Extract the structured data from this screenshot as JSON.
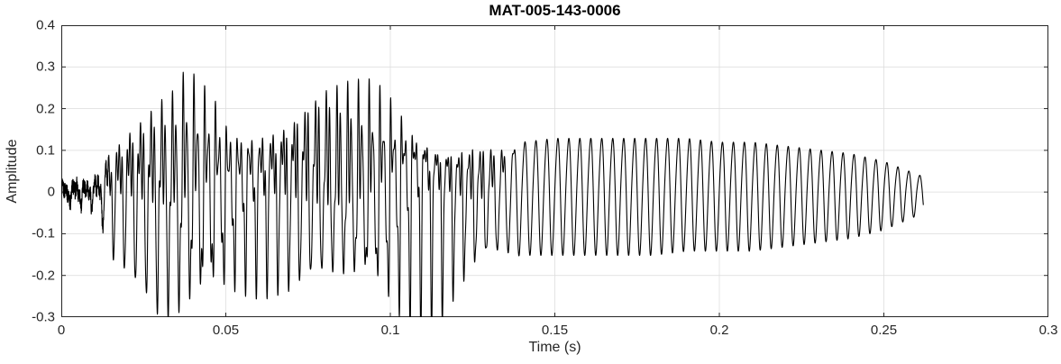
{
  "chart_data": {
    "type": "line",
    "title": "MAT-005-143-0006",
    "xlabel": "Time (s)",
    "ylabel": "Amplitude",
    "xlim": [
      0,
      0.3
    ],
    "ylim": [
      -0.3,
      0.4
    ],
    "xticks": [
      0,
      0.05,
      0.1,
      0.15,
      0.2,
      0.25,
      0.3
    ],
    "xtick_labels": [
      "0",
      "0.05",
      "0.1",
      "0.15",
      "0.2",
      "0.25",
      "0.3"
    ],
    "yticks": [
      -0.3,
      -0.2,
      -0.1,
      0,
      0.1,
      0.2,
      0.3,
      0.4
    ],
    "ytick_labels": [
      "-0.3",
      "-0.2",
      "-0.1",
      "0",
      "0.1",
      "0.2",
      "0.3",
      "0.4"
    ],
    "grid": true,
    "legend_position": "none",
    "line_color": "#000000",
    "axis_color": "#262626",
    "grid_color": "#dbdbdb",
    "background_color": "#ffffff",
    "signal": {
      "description": "speech-like waveform: peak-envelope (upper/lower) vs time, fundamental ~300 Hz, harmonically rich until ~0.127 s, near-sinusoidal decaying tail until ~0.262 s, low-level noise before onset at ~0.012 s",
      "f0_hz": 300,
      "complex_until": 0.127,
      "noise_until": 0.012,
      "noise_amp": 0.02,
      "end_time": 0.262,
      "envelope_t": [
        0.0,
        0.008,
        0.012,
        0.014,
        0.018,
        0.022,
        0.026,
        0.03,
        0.034,
        0.038,
        0.042,
        0.046,
        0.05,
        0.055,
        0.06,
        0.065,
        0.07,
        0.075,
        0.08,
        0.085,
        0.09,
        0.095,
        0.1,
        0.105,
        0.11,
        0.115,
        0.12,
        0.125,
        0.13,
        0.14,
        0.15,
        0.16,
        0.17,
        0.18,
        0.19,
        0.2,
        0.21,
        0.22,
        0.23,
        0.24,
        0.25,
        0.256,
        0.262
      ],
      "envelope_upper": [
        0.02,
        0.03,
        0.05,
        0.13,
        0.18,
        0.22,
        0.24,
        0.26,
        0.27,
        0.32,
        0.29,
        0.27,
        0.21,
        0.2,
        0.22,
        0.24,
        0.26,
        0.28,
        0.29,
        0.28,
        0.28,
        0.29,
        0.28,
        0.26,
        0.24,
        0.18,
        0.15,
        0.14,
        0.13,
        0.13,
        0.14,
        0.14,
        0.14,
        0.14,
        0.14,
        0.13,
        0.13,
        0.12,
        0.11,
        0.1,
        0.08,
        0.06,
        0.04
      ],
      "envelope_lower": [
        -0.02,
        -0.03,
        -0.05,
        -0.13,
        -0.16,
        -0.2,
        -0.24,
        -0.29,
        -0.29,
        -0.27,
        -0.26,
        -0.23,
        -0.21,
        -0.2,
        -0.2,
        -0.2,
        -0.21,
        -0.2,
        -0.2,
        -0.21,
        -0.22,
        -0.22,
        -0.24,
        -0.26,
        -0.26,
        -0.25,
        -0.21,
        -0.18,
        -0.16,
        -0.15,
        -0.15,
        -0.15,
        -0.15,
        -0.15,
        -0.14,
        -0.14,
        -0.14,
        -0.13,
        -0.12,
        -0.11,
        -0.09,
        -0.07,
        -0.05
      ]
    }
  }
}
